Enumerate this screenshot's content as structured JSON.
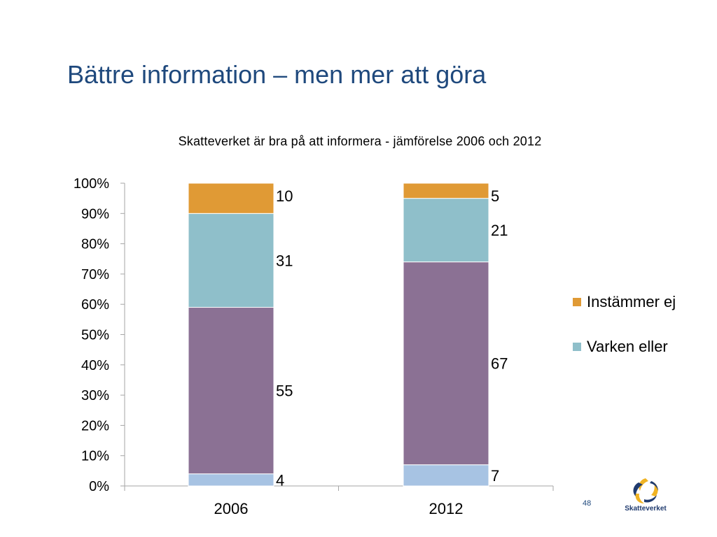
{
  "slide": {
    "title": "Bättre information – men mer att göra",
    "page_number": "48",
    "logo_text": "Skatteverket"
  },
  "colors": {
    "title": "#1f497d",
    "instammer_ej": "#e09a35",
    "varken_eller": "#8fbfca",
    "purple_segment": "#8b7194",
    "blue_segment": "#a7c3e3",
    "axis": "#a6a6a6"
  },
  "chart_data": {
    "type": "bar",
    "stacked": true,
    "percent_stacked": true,
    "title": "Skatteverket  är bra på att informera - jämförelse 2006 och 2012",
    "categories": [
      "2006",
      "2012"
    ],
    "series": [
      {
        "values": [
          4,
          7
        ],
        "color": "#a7c3e3"
      },
      {
        "values": [
          55,
          67
        ],
        "color": "#8b7194"
      },
      {
        "name": "Varken eller",
        "values": [
          31,
          21
        ],
        "color": "#8fbfca"
      },
      {
        "name": "Instämmer ej",
        "values": [
          10,
          5
        ],
        "color": "#e09a35"
      }
    ],
    "y_ticks": [
      "0%",
      "10%",
      "20%",
      "30%",
      "40%",
      "50%",
      "60%",
      "70%",
      "80%",
      "90%",
      "100%"
    ],
    "ylim": [
      0,
      100
    ],
    "grid": false,
    "legend": [
      "Instämmer ej",
      "Varken eller"
    ],
    "legend_position": "right"
  }
}
